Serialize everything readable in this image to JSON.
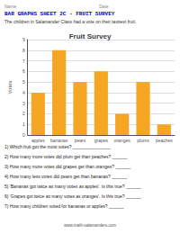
{
  "chart_data": {
    "type": "bar",
    "title": "Fruit Survey",
    "subtitle": "The children in Salamander Class had a vote on their tastiest fruit.",
    "categories": [
      "apples",
      "bananas",
      "pears",
      "grapes",
      "oranges",
      "plums",
      "peaches"
    ],
    "values": [
      4,
      8,
      5,
      6,
      2,
      5,
      1
    ],
    "color": "#F5A623",
    "ylabel": "Votes",
    "ylim": [
      0,
      9
    ],
    "yticks": [
      0,
      1,
      2,
      3,
      4,
      5,
      6,
      7,
      8,
      9
    ],
    "grid": true,
    "annotations": [
      "Name",
      "Date",
      "BAR GRAPHS SHEET 2C - FRUIT SURVEY",
      "1) Which fruit got the most votes? _______________",
      "2) How many more votes did plum get than peaches? ______",
      "3) How many more votes did grapes get than oranges? ______",
      "4) How many less votes did pears get than bananas? ______",
      "5) 'Bananas got twice as many votes as apples'. Is this true? ______",
      "6) 'Grapes got twice as many votes as oranges'. Is this true? ______",
      "7) How many children voted for bananas or apples? ______",
      "www.math-salamanders.com"
    ]
  }
}
